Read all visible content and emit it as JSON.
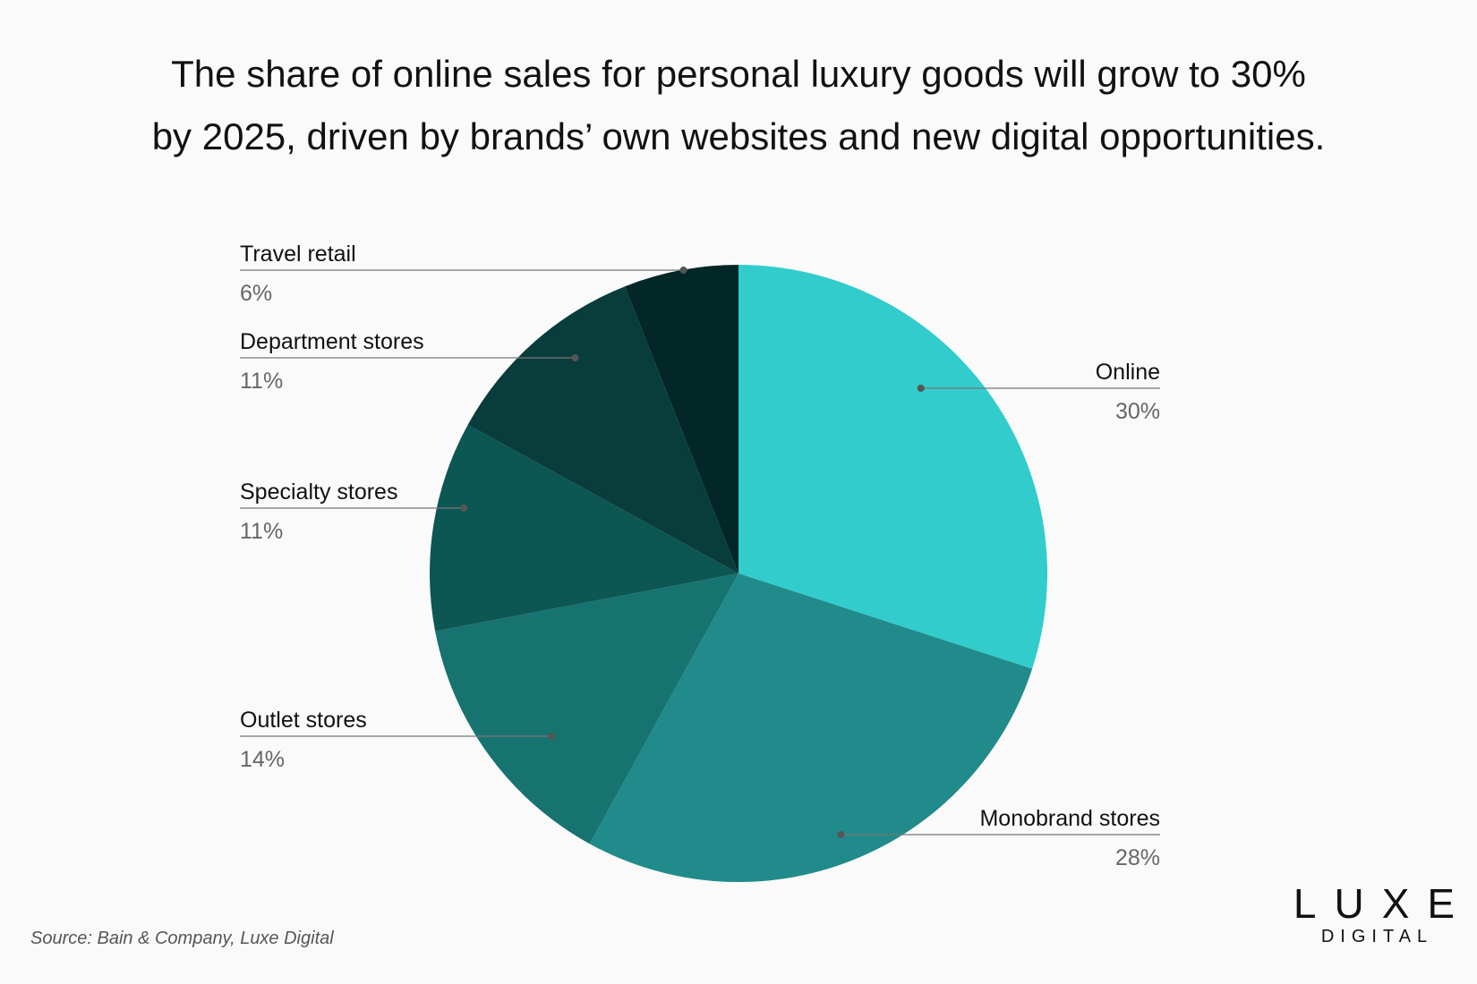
{
  "chart_data": {
    "type": "pie",
    "title_lines": [
      "The share of online sales for personal luxury goods will grow to 30%",
      "by 2025, driven by brands’ own websites and new digital opportunities."
    ],
    "slices": [
      {
        "label": "Online",
        "value": 30,
        "value_label": "30%",
        "color": "#33cccc"
      },
      {
        "label": "Monobrand stores",
        "value": 28,
        "value_label": "28%",
        "color": "#218b8b"
      },
      {
        "label": "Outlet stores",
        "value": 14,
        "value_label": "14%",
        "color": "#177370"
      },
      {
        "label": "Specialty stores",
        "value": 11,
        "value_label": "11%",
        "color": "#0c5654"
      },
      {
        "label": "Department stores",
        "value": 11,
        "value_label": "11%",
        "color": "#083d3c"
      },
      {
        "label": "Travel retail",
        "value": 6,
        "value_label": "6%",
        "color": "#032626"
      }
    ],
    "start": "12 o'clock",
    "direction": "clockwise"
  },
  "source": "Source: Bain & Company, Luxe Digital",
  "logo": {
    "main": "LUXE",
    "sub": "DIGITAL"
  }
}
